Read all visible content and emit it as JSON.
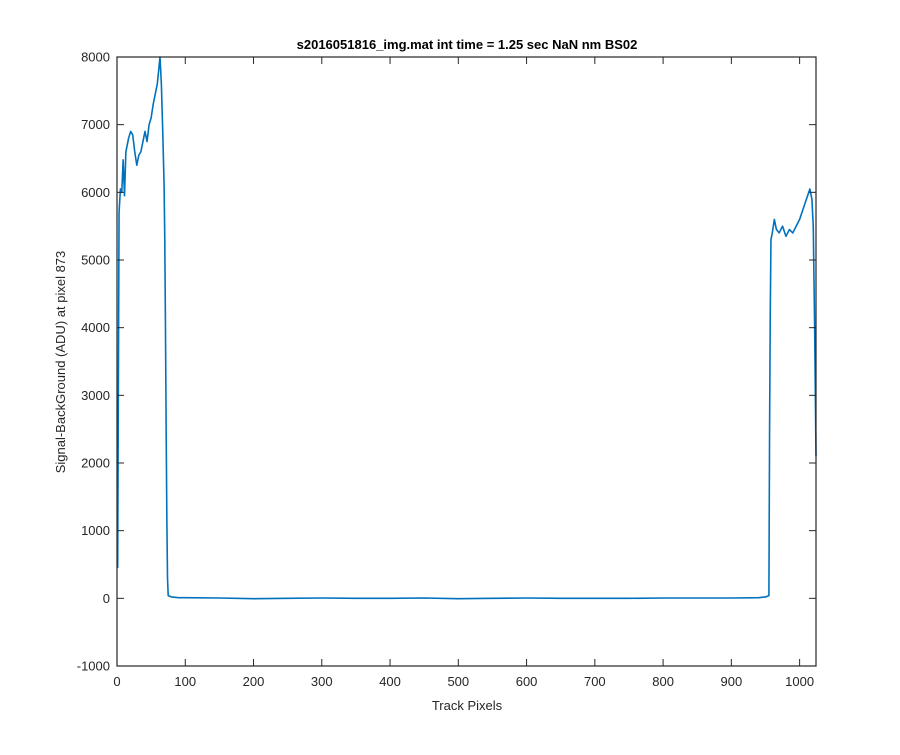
{
  "chart_data": {
    "type": "line",
    "title": "s2016051816_img.mat int time = 1.25 sec  NaN nm BS02",
    "xlabel": "Track Pixels",
    "ylabel": "Signal-BackGround (ADU) at pixel 873",
    "xlim": [
      0,
      1024
    ],
    "ylim": [
      -1000,
      8000
    ],
    "xticks": [
      0,
      100,
      200,
      300,
      400,
      500,
      600,
      700,
      800,
      900,
      1000
    ],
    "yticks": [
      -1000,
      0,
      1000,
      2000,
      3000,
      4000,
      5000,
      6000,
      7000,
      8000
    ],
    "xtick_labels": [
      "0",
      "100",
      "200",
      "300",
      "400",
      "500",
      "600",
      "700",
      "800",
      "900",
      "1000"
    ],
    "ytick_labels": [
      "-1000",
      "0",
      "1000",
      "2000",
      "3000",
      "4000",
      "5000",
      "6000",
      "7000",
      "8000"
    ],
    "grid": false,
    "series_color": "#0072BD",
    "series": [
      {
        "x": [
          1,
          3,
          5,
          7,
          9,
          11,
          13,
          15,
          17,
          20,
          23,
          26,
          29,
          32,
          35,
          38,
          41,
          44,
          47,
          50,
          53,
          56,
          59,
          61,
          63,
          65,
          67,
          69,
          70,
          71,
          72,
          73,
          74,
          75,
          80,
          90,
          100,
          150,
          200,
          250,
          300,
          350,
          400,
          450,
          500,
          550,
          600,
          650,
          700,
          750,
          800,
          850,
          900,
          940,
          950,
          955,
          956,
          957,
          958,
          960,
          963,
          966,
          970,
          975,
          980,
          985,
          990,
          995,
          1000,
          1005,
          1010,
          1015,
          1018,
          1020,
          1022,
          1024
        ],
        "y": [
          450,
          5700,
          6050,
          6000,
          6480,
          5950,
          6600,
          6700,
          6800,
          6900,
          6850,
          6600,
          6400,
          6550,
          6600,
          6750,
          6900,
          6750,
          7000,
          7100,
          7300,
          7450,
          7600,
          7800,
          8000,
          7600,
          6900,
          6100,
          5300,
          4000,
          2500,
          1200,
          300,
          40,
          20,
          10,
          10,
          5,
          -5,
          0,
          5,
          0,
          0,
          5,
          -5,
          0,
          5,
          0,
          0,
          0,
          5,
          5,
          5,
          10,
          20,
          40,
          2500,
          4200,
          5300,
          5400,
          5600,
          5450,
          5400,
          5500,
          5350,
          5450,
          5400,
          5500,
          5600,
          5750,
          5900,
          6050,
          5900,
          5500,
          4000,
          2100
        ]
      }
    ]
  }
}
